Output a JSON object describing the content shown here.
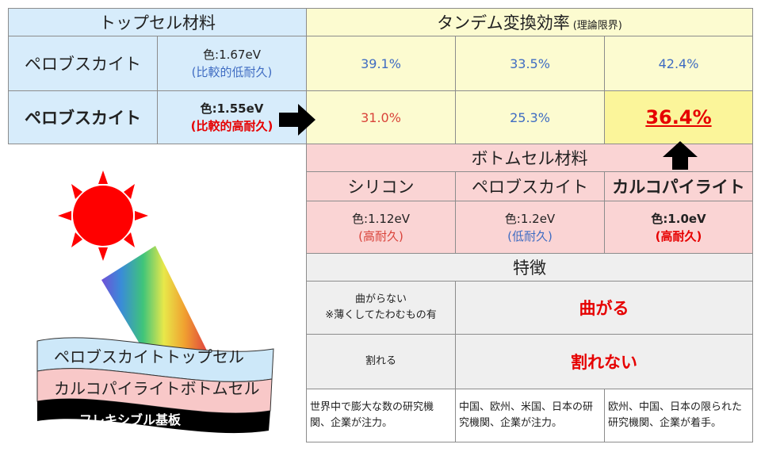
{
  "top_material": {
    "header": "トップセル材料",
    "rows": [
      {
        "name": "ペロブスカイト",
        "gap": "色:1.67eV",
        "durability": "(比較的低耐久)"
      },
      {
        "name": "ペロブスカイト",
        "gap": "色:1.55eV",
        "durability": "(比較的高耐久)"
      }
    ]
  },
  "efficiency": {
    "header": "タンデム変換効率",
    "header_sub": "(理論限界)",
    "row1": [
      "39.1%",
      "33.5%",
      "42.4%"
    ],
    "row2": [
      "31.0%",
      "25.3%",
      "36.4%"
    ]
  },
  "bottom_material": {
    "header": "ボトムセル材料",
    "cols": [
      {
        "name": "シリコン",
        "gap": "色:1.12eV",
        "durability": "(高耐久)"
      },
      {
        "name": "ペロブスカイト",
        "gap": "色:1.2eV",
        "durability": "(低耐久)"
      },
      {
        "name": "カルコパイライト",
        "gap": "色:1.0eV",
        "durability": "(高耐久)"
      }
    ]
  },
  "features": {
    "header": "特徴",
    "row1": {
      "left_line1": "曲がらない",
      "left_line2": "※薄くしてたわむもの有",
      "right": "曲がる"
    },
    "row2": {
      "left": "割れる",
      "right": "割れない"
    },
    "row3": [
      "世界中で膨大な数の研究機関、企業が注力。",
      "中国、欧州、米国、日本の研究機関、企業が注力。",
      "欧州、中国、日本の限られた研究機関、企業が着手。"
    ]
  },
  "diagram": {
    "layer_top": "ペロブスカイトトップセル",
    "layer_mid": "カルコパイライトボトムセル",
    "layer_bottom": "フレキシブル基板"
  },
  "colors": {
    "blue_cell": "#d7ecfb",
    "yellow_cell": "#fcfbd0",
    "highlight_cell": "#fbf59a",
    "pink_cell": "#fad4d4",
    "gray_cell": "#efefef",
    "accent_red": "#e60000",
    "accent_blue": "#3f6cc2"
  }
}
